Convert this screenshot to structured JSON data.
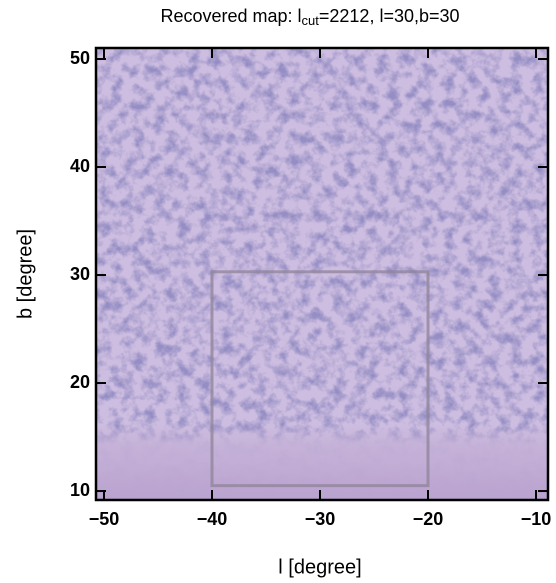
{
  "chart_data": {
    "type": "image",
    "title": {
      "text": "Recovered map: l",
      "subscript": "cut",
      "suffix": "=2212, l=30,b=30"
    },
    "x_label": "l [degree]",
    "y_label": "b [degree]",
    "xlim": [
      -50.74,
      -8.89
    ],
    "ylim": [
      9.17,
      51.02
    ],
    "xticks": [
      {
        "value": -50,
        "label": "−50"
      },
      {
        "value": -40,
        "label": "−40"
      },
      {
        "value": -30,
        "label": "−30"
      },
      {
        "value": -20,
        "label": "−20"
      },
      {
        "value": -10,
        "label": "−10"
      }
    ],
    "yticks": [
      10,
      20,
      30,
      40,
      50
    ],
    "region": {
      "x": [
        -40,
        -20
      ],
      "y": [
        10.5,
        30.3
      ]
    }
  }
}
